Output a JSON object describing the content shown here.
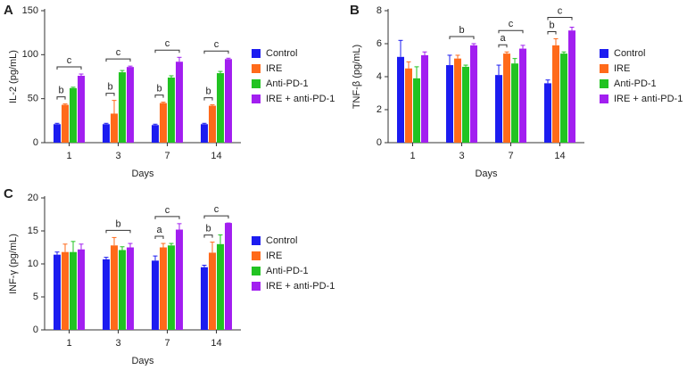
{
  "chart_data": [
    {
      "type": "bar",
      "panel_label": "A",
      "y_label": "IL-2 (pg/mL)",
      "x_label": "Days",
      "categories": [
        "1",
        "3",
        "7",
        "14"
      ],
      "ylim": [
        0,
        150
      ],
      "yticks": [
        0,
        50,
        100,
        150
      ],
      "series": [
        {
          "name": "Control",
          "color": "#1c1cf0",
          "values": [
            21,
            21,
            20,
            21
          ],
          "errors": [
            1,
            1,
            1,
            1
          ]
        },
        {
          "name": "IRE",
          "color": "#ff6a1a",
          "values": [
            43,
            33,
            45,
            42
          ],
          "errors": [
            1,
            15,
            1,
            1
          ]
        },
        {
          "name": "Anti-PD-1",
          "color": "#22c322",
          "values": [
            62,
            80,
            74,
            79
          ],
          "errors": [
            1,
            2,
            2,
            2
          ]
        },
        {
          "name": "IRE + anti-PD-1",
          "color": "#a21ff0",
          "values": [
            76,
            86,
            92,
            95
          ],
          "errors": [
            2,
            1,
            5,
            1
          ]
        }
      ],
      "annotations": [
        {
          "text": "b",
          "category": "1",
          "between": [
            "Control",
            "IRE"
          ]
        },
        {
          "text": "c",
          "category": "1",
          "between": [
            "Control",
            "IRE + anti-PD-1"
          ]
        },
        {
          "text": "b",
          "category": "3",
          "between": [
            "Control",
            "IRE"
          ]
        },
        {
          "text": "c",
          "category": "3",
          "between": [
            "Control",
            "IRE + anti-PD-1"
          ]
        },
        {
          "text": "b",
          "category": "7",
          "between": [
            "Control",
            "IRE"
          ]
        },
        {
          "text": "c",
          "category": "7",
          "between": [
            "Control",
            "IRE + anti-PD-1"
          ]
        },
        {
          "text": "b",
          "category": "14",
          "between": [
            "Control",
            "IRE"
          ]
        },
        {
          "text": "c",
          "category": "14",
          "between": [
            "Control",
            "IRE + anti-PD-1"
          ]
        }
      ]
    },
    {
      "type": "bar",
      "panel_label": "B",
      "y_label": "TNF-β (pg/mL)",
      "x_label": "Days",
      "categories": [
        "1",
        "3",
        "7",
        "14"
      ],
      "ylim": [
        0,
        8
      ],
      "yticks": [
        0,
        2,
        4,
        6,
        8
      ],
      "series": [
        {
          "name": "Control",
          "color": "#1c1cf0",
          "values": [
            5.2,
            4.7,
            4.1,
            3.6
          ],
          "errors": [
            1.0,
            0.6,
            0.6,
            0.2
          ]
        },
        {
          "name": "IRE",
          "color": "#ff6a1a",
          "values": [
            4.5,
            5.1,
            5.4,
            5.9
          ],
          "errors": [
            0.4,
            0.2,
            0.1,
            0.4
          ]
        },
        {
          "name": "Anti-PD-1",
          "color": "#22c322",
          "values": [
            3.9,
            4.6,
            4.8,
            5.4
          ],
          "errors": [
            0.7,
            0.1,
            0.3,
            0.1
          ]
        },
        {
          "name": "IRE + anti-PD-1",
          "color": "#a21ff0",
          "values": [
            5.3,
            5.9,
            5.7,
            6.8
          ],
          "errors": [
            0.2,
            0.1,
            0.2,
            0.2
          ]
        }
      ],
      "annotations": [
        {
          "text": "b",
          "category": "3",
          "between": [
            "Control",
            "IRE + anti-PD-1"
          ]
        },
        {
          "text": "a",
          "category": "7",
          "between": [
            "Control",
            "IRE"
          ]
        },
        {
          "text": "c",
          "category": "7",
          "between": [
            "Control",
            "IRE + anti-PD-1"
          ]
        },
        {
          "text": "b",
          "category": "14",
          "between": [
            "Control",
            "IRE"
          ]
        },
        {
          "text": "c",
          "category": "14",
          "between": [
            "Control",
            "IRE + anti-PD-1"
          ]
        }
      ]
    },
    {
      "type": "bar",
      "panel_label": "C",
      "y_label": "INF-γ (pg/mL)",
      "x_label": "Days",
      "categories": [
        "1",
        "3",
        "7",
        "14"
      ],
      "ylim": [
        0,
        20
      ],
      "yticks": [
        0,
        5,
        10,
        15,
        20
      ],
      "series": [
        {
          "name": "Control",
          "color": "#1c1cf0",
          "values": [
            11.4,
            10.7,
            10.5,
            9.5
          ],
          "errors": [
            0.4,
            0.3,
            0.7,
            0.3
          ]
        },
        {
          "name": "IRE",
          "color": "#ff6a1a",
          "values": [
            11.8,
            12.8,
            12.5,
            11.7
          ],
          "errors": [
            1.2,
            1.2,
            0.6,
            1.6
          ]
        },
        {
          "name": "Anti-PD-1",
          "color": "#22c322",
          "values": [
            11.8,
            12.1,
            12.8,
            13.0
          ],
          "errors": [
            1.6,
            0.5,
            0.3,
            1.4
          ]
        },
        {
          "name": "IRE + anti-PD-1",
          "color": "#a21ff0",
          "values": [
            12.2,
            12.5,
            15.2,
            16.2
          ],
          "errors": [
            0.8,
            0.6,
            0.9,
            0
          ]
        }
      ],
      "annotations": [
        {
          "text": "b",
          "category": "3",
          "between": [
            "Control",
            "IRE + anti-PD-1"
          ]
        },
        {
          "text": "a",
          "category": "7",
          "between": [
            "Control",
            "IRE"
          ]
        },
        {
          "text": "c",
          "category": "7",
          "between": [
            "Control",
            "IRE + anti-PD-1"
          ]
        },
        {
          "text": "b",
          "category": "14",
          "between": [
            "Control",
            "IRE"
          ]
        },
        {
          "text": "c",
          "category": "14",
          "between": [
            "Control",
            "IRE + anti-PD-1"
          ]
        }
      ]
    }
  ]
}
